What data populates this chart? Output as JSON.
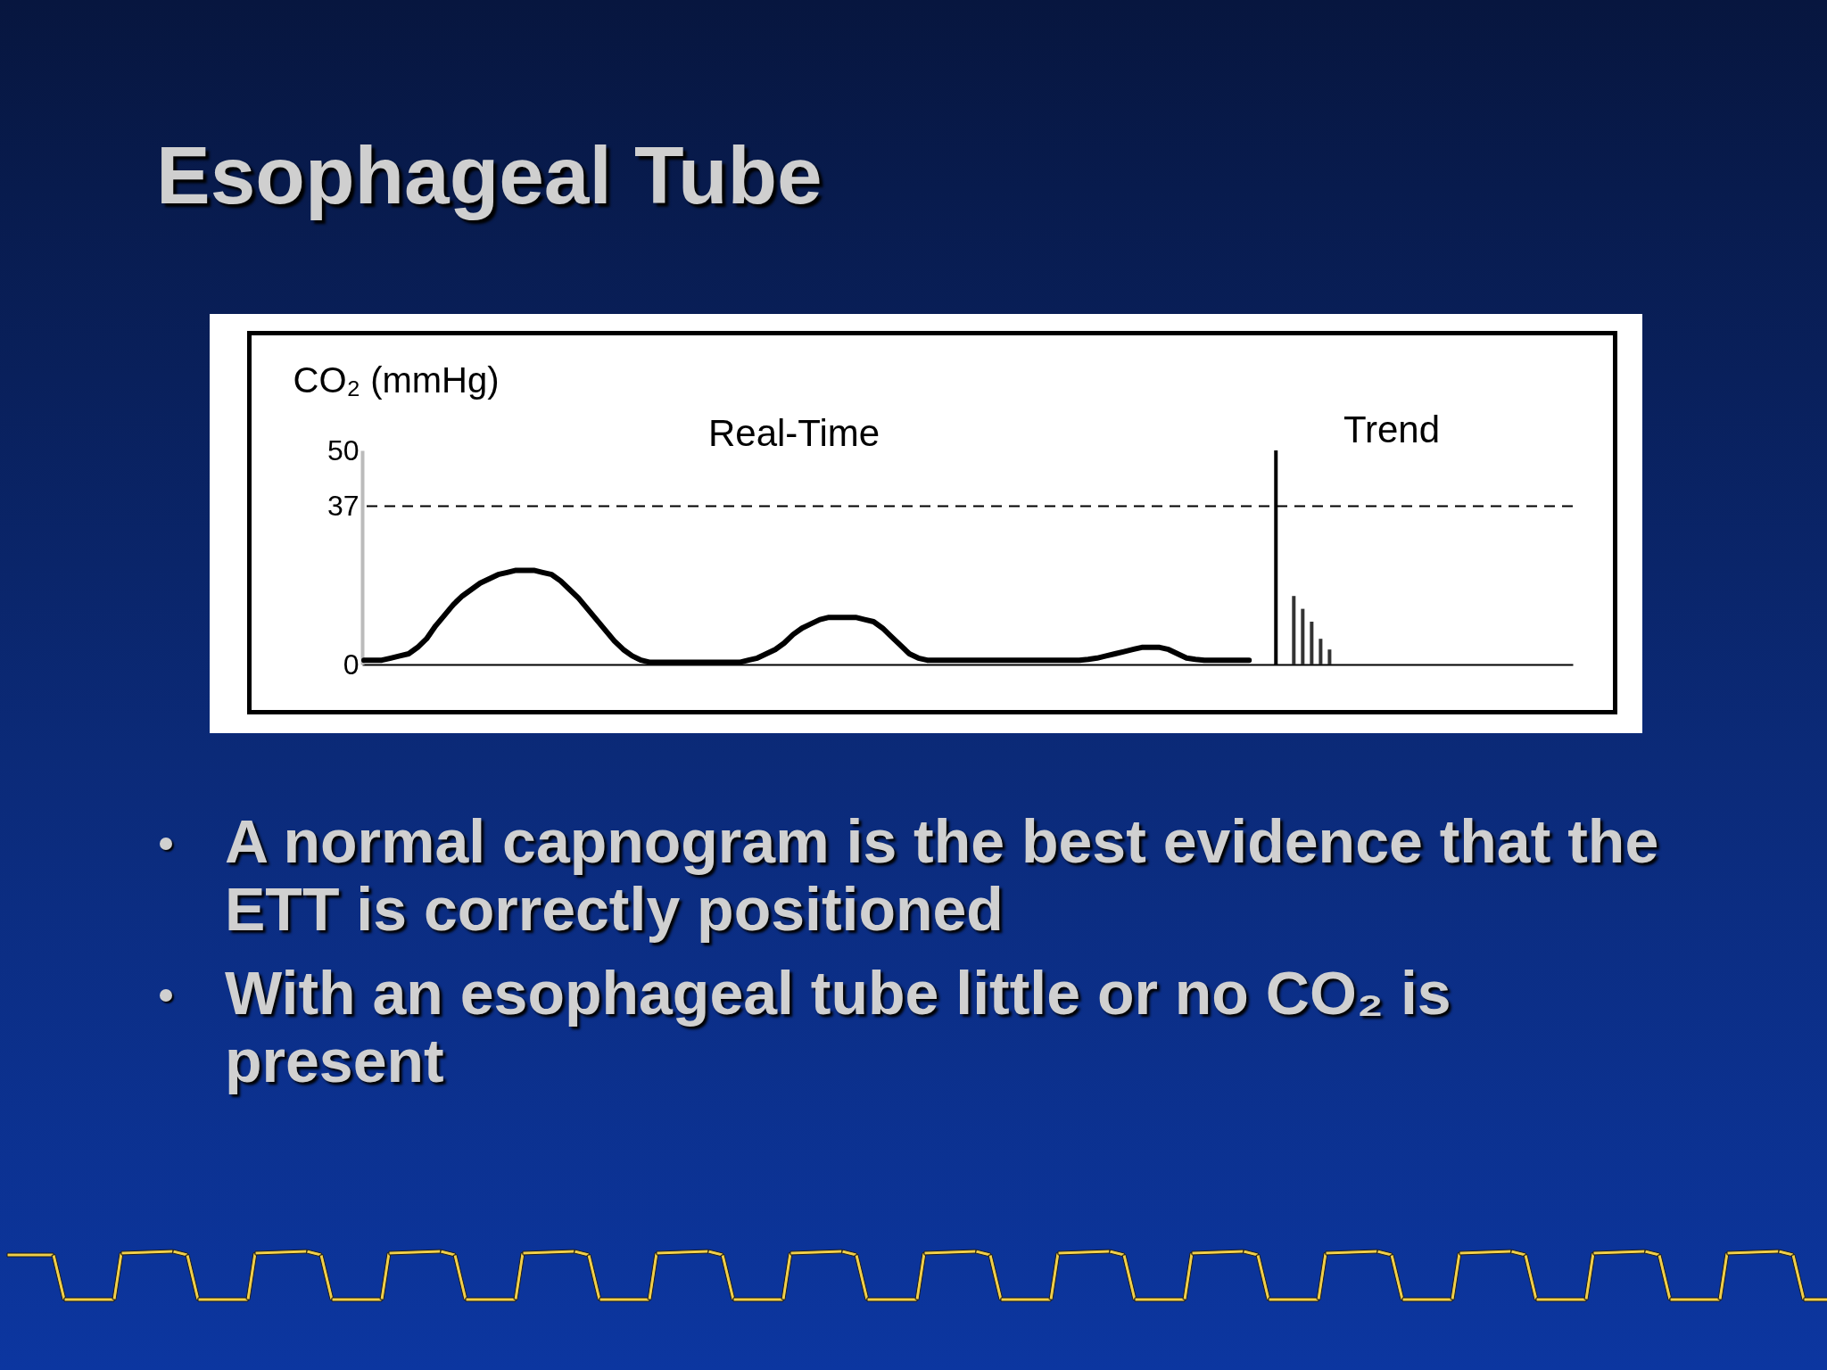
{
  "chart_data": {
    "type": "line",
    "title": "Esophageal Tube",
    "ylabel": "CO₂ (mmHg)",
    "categories": [
      null,
      null,
      null,
      null,
      null,
      null,
      null,
      null,
      null,
      null,
      null,
      null,
      null,
      null,
      null,
      null,
      null,
      null,
      null,
      null,
      null,
      null,
      null,
      null,
      null,
      null,
      null,
      null,
      null,
      null,
      null,
      null,
      null,
      null,
      null,
      null,
      null,
      null,
      null,
      null,
      null,
      null,
      null,
      null,
      null,
      null,
      null,
      null,
      null,
      null,
      null,
      null,
      null,
      null,
      null,
      null,
      null,
      null,
      null,
      null,
      null,
      null,
      null,
      null,
      null,
      null,
      null,
      null,
      null,
      null,
      null,
      null,
      null,
      null,
      null,
      null,
      null,
      null,
      null,
      null,
      null,
      null,
      null,
      null,
      null,
      null,
      null,
      null,
      null,
      null,
      null,
      null,
      null,
      null,
      null,
      null,
      null,
      null,
      null,
      null,
      null,
      null,
      null,
      null,
      null,
      null,
      null,
      null,
      null,
      null,
      null,
      null,
      null,
      null,
      null,
      null,
      null,
      null,
      null,
      null,
      null,
      null,
      null,
      null,
      null,
      null,
      null,
      null,
      null,
      null,
      null,
      null,
      null,
      null,
      null,
      null
    ],
    "series": [
      {
        "color": "#000000",
        "values": [
          1,
          1,
          1,
          1.5,
          2,
          2.5,
          4,
          6,
          9,
          11.5,
          14,
          16,
          17.5,
          19,
          20,
          21,
          21.5,
          22,
          22,
          22,
          21.5,
          21,
          19.5,
          17.5,
          15.5,
          13,
          10.5,
          8,
          5.5,
          3.5,
          2,
          1,
          0.5,
          0.5,
          0.5,
          0.5,
          0.5,
          0.5,
          0.5,
          0.5,
          0.5,
          0.5,
          0.5,
          1,
          1.5,
          2.5,
          3.5,
          5,
          7,
          8.5,
          9.5,
          10.5,
          11,
          11,
          11,
          11,
          10.5,
          10,
          8.5,
          6.5,
          4.5,
          2.5,
          1.5,
          1,
          1,
          1,
          1,
          1,
          1,
          1,
          1,
          1,
          1,
          1,
          1,
          1,
          1,
          1,
          1,
          1,
          1,
          1.2,
          1.5,
          2,
          2.5,
          3,
          3.5,
          4,
          4,
          4,
          3.5,
          2.5,
          1.5,
          1.2,
          1,
          1,
          1,
          1,
          1,
          1,
          null,
          null,
          null,
          null,
          null,
          null,
          null,
          null,
          null,
          null,
          null,
          null,
          null,
          null,
          null,
          null,
          null,
          null,
          null,
          null,
          null,
          null,
          null,
          null,
          null,
          null,
          null,
          null,
          null,
          null,
          null,
          null,
          null,
          null,
          null,
          null
        ]
      },
      {
        "type": "bar",
        "color": "#000000",
        "values": [
          null,
          null,
          null,
          null,
          null,
          null,
          null,
          null,
          null,
          null,
          null,
          null,
          null,
          null,
          null,
          null,
          null,
          null,
          null,
          null,
          null,
          null,
          null,
          null,
          null,
          null,
          null,
          null,
          null,
          null,
          null,
          null,
          null,
          null,
          null,
          null,
          null,
          null,
          null,
          null,
          null,
          null,
          null,
          null,
          null,
          null,
          null,
          null,
          null,
          null,
          null,
          null,
          null,
          null,
          null,
          null,
          null,
          null,
          null,
          null,
          null,
          null,
          null,
          null,
          null,
          null,
          null,
          null,
          null,
          null,
          null,
          null,
          null,
          null,
          null,
          null,
          null,
          null,
          null,
          null,
          null,
          null,
          null,
          null,
          null,
          null,
          null,
          null,
          null,
          null,
          null,
          null,
          null,
          null,
          null,
          null,
          null,
          null,
          null,
          null,
          null,
          null,
          50,
          null,
          null,
          null,
          null,
          null,
          null,
          null,
          null,
          null,
          null,
          null,
          null,
          null,
          null,
          null,
          null,
          null,
          null,
          null,
          null,
          null,
          null,
          null,
          null,
          null,
          null,
          null,
          null,
          null,
          null,
          null,
          null,
          null
        ]
      },
      {
        "type": "bar",
        "color": "#333333",
        "values": [
          null,
          null,
          null,
          null,
          null,
          null,
          null,
          null,
          null,
          null,
          null,
          null,
          null,
          null,
          null,
          null,
          null,
          null,
          null,
          null,
          null,
          null,
          null,
          null,
          null,
          null,
          null,
          null,
          null,
          null,
          null,
          null,
          null,
          null,
          null,
          null,
          null,
          null,
          null,
          null,
          null,
          null,
          null,
          null,
          null,
          null,
          null,
          null,
          null,
          null,
          null,
          null,
          null,
          null,
          null,
          null,
          null,
          null,
          null,
          null,
          null,
          null,
          null,
          null,
          null,
          null,
          null,
          null,
          null,
          null,
          null,
          null,
          null,
          null,
          null,
          null,
          null,
          null,
          null,
          null,
          null,
          null,
          null,
          null,
          null,
          null,
          null,
          null,
          null,
          null,
          null,
          null,
          null,
          null,
          null,
          null,
          null,
          null,
          null,
          null,
          null,
          null,
          null,
          null,
          16,
          13,
          10,
          6,
          3.5,
          null,
          null,
          null,
          null,
          null,
          null,
          null,
          null,
          null,
          null,
          null,
          null,
          null,
          null,
          null,
          null,
          null,
          null,
          null,
          null,
          null,
          null,
          null,
          null,
          null,
          null,
          null
        ]
      }
    ],
    "ylim": [
      0,
      50
    ],
    "yticks": [
      0,
      37,
      50
    ],
    "tick_labels": "y",
    "ref_lines": [
      {
        "axis": "y",
        "value": 37,
        "line_style": "dashed",
        "color": "#000000"
      }
    ],
    "annotations": [
      "Real-Time",
      "Trend",
      "A normal capnogram is the best evidence that the ETT is correctly positioned",
      "With an esophageal tube little or no CO₂ is present"
    ]
  }
}
